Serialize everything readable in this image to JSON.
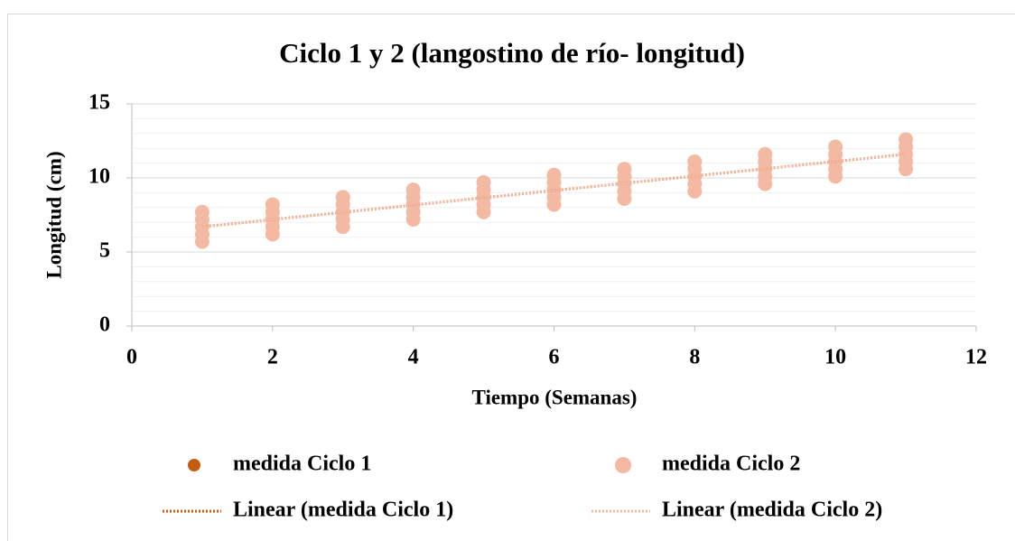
{
  "chart_data": {
    "type": "scatter",
    "title": "Ciclo 1 y 2 (langostino de río- longitud)",
    "xlabel": "Tiempo (Semanas)",
    "ylabel": "Longitud (cm)",
    "xlim": [
      0,
      12
    ],
    "xticks": [
      0,
      2,
      4,
      6,
      8,
      10,
      12
    ],
    "ylim": [
      0,
      15
    ],
    "yticks": [
      0,
      5,
      10,
      15
    ],
    "yminorticks": [
      1,
      2,
      3,
      4,
      6,
      7,
      8,
      9,
      11,
      12,
      13,
      14
    ],
    "grid": true,
    "legend": "bottom",
    "series": [
      {
        "name": "medida Ciclo 1",
        "color": "#c55a11",
        "x": [
          1,
          1,
          1,
          2,
          2,
          2,
          3,
          3,
          3,
          4,
          4,
          4,
          5,
          5,
          5,
          6,
          6,
          6,
          7,
          7,
          7,
          8,
          8,
          8,
          9,
          9,
          9,
          10,
          10,
          10,
          11,
          11,
          11
        ],
        "values": [
          6.4,
          6.7,
          7.0,
          6.9,
          7.2,
          7.5,
          7.4,
          7.7,
          8.0,
          7.9,
          8.2,
          8.5,
          8.4,
          8.7,
          9.0,
          8.9,
          9.2,
          9.5,
          9.3,
          9.6,
          9.9,
          9.8,
          10.1,
          10.4,
          10.3,
          10.6,
          10.9,
          10.8,
          11.1,
          11.4,
          11.3,
          11.6,
          11.9
        ]
      },
      {
        "name": "medida Ciclo 2",
        "color": "#f4b9a2",
        "x": [
          1,
          1,
          1,
          1,
          1,
          2,
          2,
          2,
          2,
          2,
          3,
          3,
          3,
          3,
          3,
          4,
          4,
          4,
          4,
          4,
          5,
          5,
          5,
          5,
          5,
          6,
          6,
          6,
          6,
          6,
          7,
          7,
          7,
          7,
          7,
          8,
          8,
          8,
          8,
          8,
          9,
          9,
          9,
          9,
          9,
          10,
          10,
          10,
          10,
          10,
          11,
          11,
          11,
          11,
          11
        ],
        "values": [
          5.7,
          6.2,
          6.7,
          7.2,
          7.7,
          6.2,
          6.7,
          7.2,
          7.7,
          8.2,
          6.7,
          7.2,
          7.7,
          8.2,
          8.7,
          7.2,
          7.7,
          8.2,
          8.7,
          9.2,
          7.7,
          8.2,
          8.7,
          9.2,
          9.7,
          8.2,
          8.7,
          9.2,
          9.7,
          10.2,
          8.6,
          9.1,
          9.6,
          10.1,
          10.6,
          9.1,
          9.6,
          10.1,
          10.6,
          11.1,
          9.6,
          10.1,
          10.6,
          11.1,
          11.6,
          10.1,
          10.6,
          11.1,
          11.6,
          12.1,
          10.6,
          11.1,
          11.6,
          12.1,
          12.6
        ]
      },
      {
        "name": "Linear (medida Ciclo 1)",
        "color": "#c55a11",
        "line_style": "dotted",
        "x": [
          1,
          11
        ],
        "values": [
          6.7,
          11.6
        ]
      },
      {
        "name": "Linear (medida Ciclo 2)",
        "color": "#f4b9a2",
        "line_style": "dotted",
        "x": [
          1,
          11
        ],
        "values": [
          6.7,
          11.6
        ]
      }
    ]
  }
}
